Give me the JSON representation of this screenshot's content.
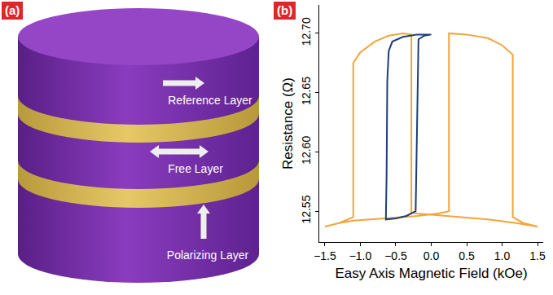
{
  "diagram": {
    "panel": "(a)",
    "layers": [
      {
        "label": "Reference Layer"
      },
      {
        "label": "Free Layer"
      },
      {
        "label": "Polarizing Layer"
      }
    ]
  },
  "chart_data": {
    "type": "line",
    "panel": "(b)",
    "x_label": "Easy Axis Magnetic Field (kOe)",
    "y_label": "Resistance (Ω)",
    "xlim": [
      -1.58,
      1.58
    ],
    "xticks": [
      {
        "value": -1.5,
        "label": "−1.5"
      },
      {
        "value": -1.0,
        "label": "−1.0"
      },
      {
        "value": -0.5,
        "label": "−0.5"
      },
      {
        "value": 0,
        "label": "0.0"
      },
      0.5,
      {
        "value": 1.0,
        "label": "1.0"
      },
      1.5
    ],
    "ylim": [
      12.524,
      12.724
    ],
    "yticks": [
      12.55,
      {
        "value": 12.6,
        "label": "12.60"
      },
      12.65,
      {
        "value": 12.7,
        "label": "12.70"
      }
    ],
    "grid": false,
    "series": [
      {
        "color": "#f2a53a",
        "x": [
          1.5,
          1.2,
          0.8,
          0.4,
          0.0,
          -0.2,
          -0.28,
          -0.28,
          -0.4,
          -0.6,
          -0.8,
          -1.0,
          -1.1,
          -1.1,
          -1.3,
          -1.5,
          -1.3,
          -1.1,
          -0.6,
          -0.2,
          0.1,
          0.25,
          0.25,
          0.5,
          0.8,
          1.0,
          1.15,
          1.15,
          1.3,
          1.5
        ],
        "values": [
          12.537,
          12.54,
          12.543,
          12.545,
          12.547,
          12.548,
          12.549,
          12.699,
          12.7,
          12.698,
          12.693,
          12.684,
          12.675,
          12.545,
          12.54,
          12.537,
          12.54,
          12.542,
          12.544,
          12.546,
          12.548,
          12.55,
          12.7,
          12.699,
          12.696,
          12.69,
          12.682,
          12.545,
          12.54,
          12.537
        ]
      },
      {
        "color": "#1c3d7a",
        "x": [
          0.0,
          -0.2,
          -0.4,
          -0.55,
          -0.6,
          -0.62,
          -0.63,
          -0.64,
          -0.5,
          -0.35,
          -0.22,
          -0.2,
          -0.18,
          -0.1,
          0.0
        ],
        "values": [
          12.699,
          12.699,
          12.697,
          12.693,
          12.685,
          12.66,
          12.58,
          12.543,
          12.544,
          12.546,
          12.55,
          12.62,
          12.695,
          12.698,
          12.699
        ]
      }
    ]
  }
}
